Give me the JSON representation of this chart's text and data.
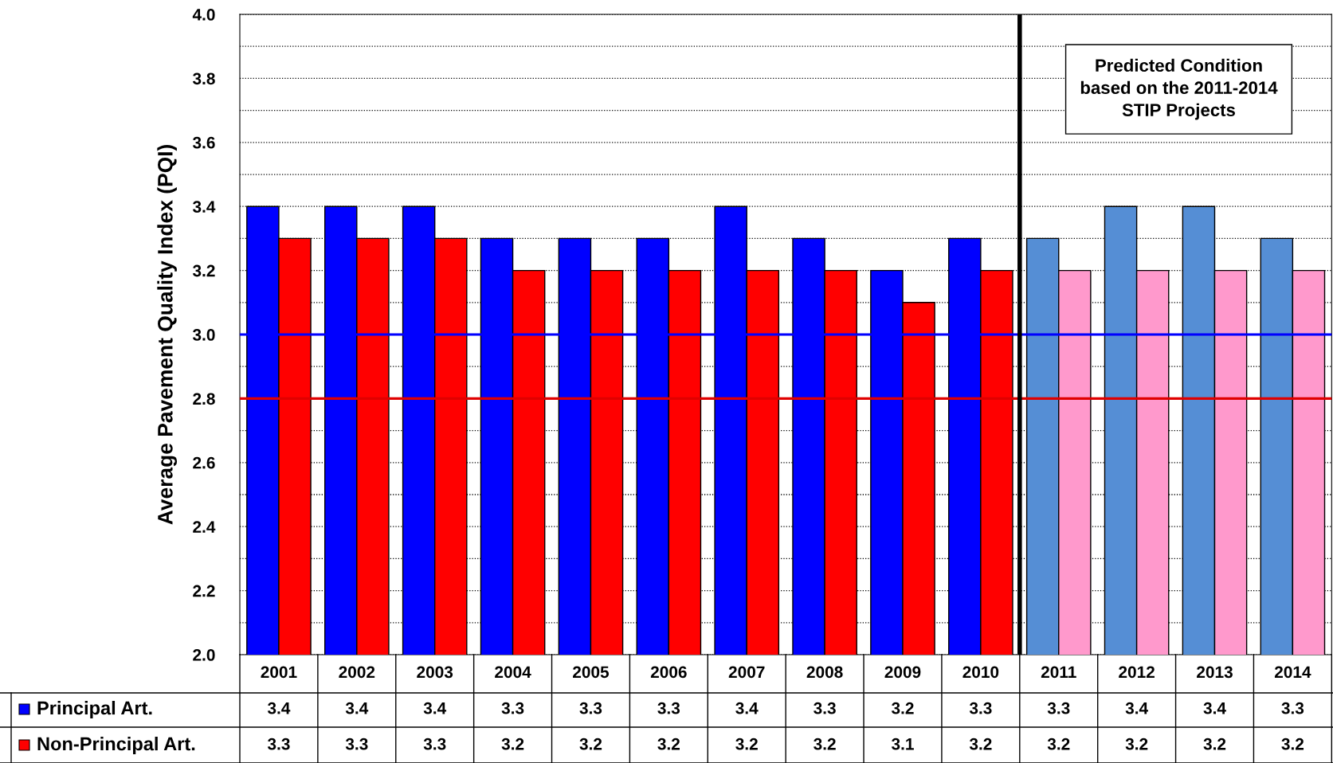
{
  "chart_data": {
    "type": "bar",
    "ylabel": "Average Pavement Quality Index (PQI)",
    "categories": [
      "2001",
      "2002",
      "2003",
      "2004",
      "2005",
      "2006",
      "2007",
      "2008",
      "2009",
      "2010",
      "2011",
      "2012",
      "2013",
      "2014"
    ],
    "series": [
      {
        "name": "Principal Art.",
        "color": "#0000ff",
        "colors": [
          "#0000ff",
          "#0000ff",
          "#0000ff",
          "#0000ff",
          "#0000ff",
          "#0000ff",
          "#0000ff",
          "#0000ff",
          "#0000ff",
          "#0000ff",
          "#558ed5",
          "#558ed5",
          "#558ed5",
          "#558ed5"
        ],
        "values": [
          3.4,
          3.4,
          3.4,
          3.3,
          3.3,
          3.3,
          3.4,
          3.3,
          3.2,
          3.3,
          3.3,
          3.4,
          3.4,
          3.3
        ]
      },
      {
        "name": "Non-Principal Art.",
        "color": "#ff0000",
        "colors": [
          "#ff0000",
          "#ff0000",
          "#ff0000",
          "#ff0000",
          "#ff0000",
          "#ff0000",
          "#ff0000",
          "#ff0000",
          "#ff0000",
          "#ff0000",
          "#ff99cc",
          "#ff99cc",
          "#ff99cc",
          "#ff99cc"
        ],
        "values": [
          3.3,
          3.3,
          3.3,
          3.2,
          3.2,
          3.2,
          3.2,
          3.2,
          3.1,
          3.2,
          3.2,
          3.2,
          3.2,
          3.2
        ]
      }
    ],
    "ylim": [
      2.0,
      4.0
    ],
    "yticks": [
      {
        "value": 2.0,
        "label": "2.0"
      },
      {
        "value": 2.1,
        "label": null
      },
      {
        "value": 2.2,
        "label": "2.2"
      },
      {
        "value": 2.3,
        "label": null
      },
      {
        "value": 2.4,
        "label": "2.4"
      },
      {
        "value": 2.5,
        "label": null
      },
      {
        "value": 2.6,
        "label": "2.6"
      },
      {
        "value": 2.7,
        "label": null
      },
      {
        "value": 2.8,
        "label": "2.8"
      },
      {
        "value": 2.9,
        "label": null
      },
      {
        "value": 3.0,
        "label": "3.0"
      },
      {
        "value": 3.1,
        "label": null
      },
      {
        "value": 3.2,
        "label": "3.2"
      },
      {
        "value": 3.3,
        "label": null
      },
      {
        "value": 3.4,
        "label": "3.4"
      },
      {
        "value": 3.5,
        "label": null
      },
      {
        "value": 3.6,
        "label": "3.6"
      },
      {
        "value": 3.7,
        "label": null
      },
      {
        "value": 3.8,
        "label": "3.8"
      },
      {
        "value": 3.9,
        "label": null
      },
      {
        "value": 4.0,
        "label": "4.0"
      }
    ],
    "grid": "y",
    "ref_lines": [
      {
        "axis": "y",
        "value": 3.0,
        "color": "#0000ff"
      },
      {
        "axis": "y",
        "value": 2.8,
        "color": "#e00000"
      },
      {
        "axis": "x",
        "value": "2011",
        "color": "#000000"
      }
    ],
    "annotations": [
      "Predicted Condition\nbased on the 2011-2014\nSTIP Projects"
    ],
    "data_labels": true,
    "legend": "bottom"
  }
}
